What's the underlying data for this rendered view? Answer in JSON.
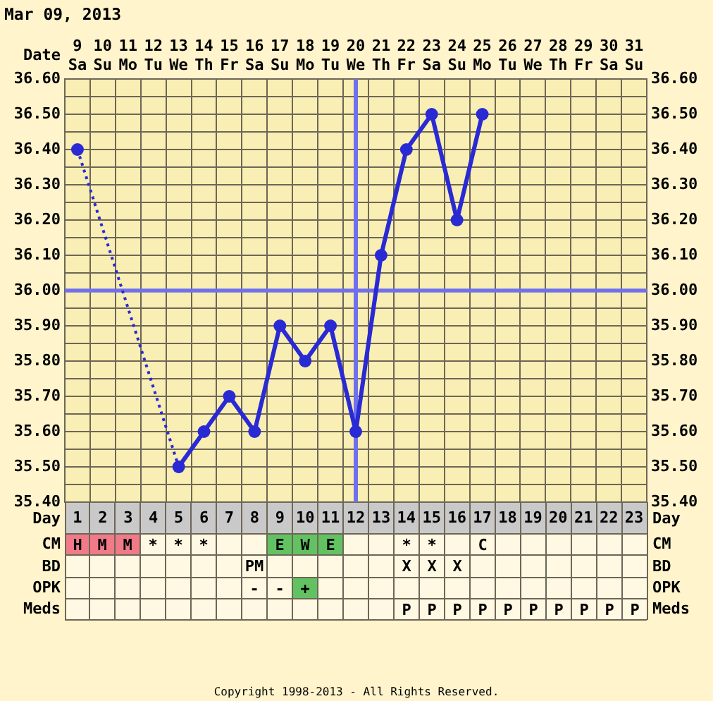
{
  "chart_data": [
    {
      "type": "line",
      "title": "Mar 09, 2013",
      "xlabel": "Date",
      "x2label": "Day",
      "categories": [
        "9\nSa",
        "10\nSu",
        "11\nMo",
        "12\nTu",
        "13\nWe",
        "14\nTh",
        "15\nFr",
        "16\nSa",
        "17\nSu",
        "18\nMo",
        "19\nTu",
        "20\nWe",
        "21\nTh",
        "22\nFr",
        "23\nSa",
        "24\nSu",
        "25\nMo",
        "26\nTu",
        "27\nWe",
        "28\nTh",
        "29\nFr",
        "30\nSa",
        "31\nSu"
      ],
      "values": [
        36.4,
        null,
        null,
        null,
        35.5,
        35.6,
        35.7,
        35.6,
        35.9,
        35.8,
        35.9,
        35.6,
        36.1,
        36.4,
        36.5,
        36.2,
        36.5,
        null,
        null,
        null,
        null,
        null,
        null
      ],
      "color": "#2a2ad4",
      "marker": "circle",
      "line_style": "solid",
      "grid": true,
      "x2lim": [
        0.5,
        23.5
      ],
      "x2ticks": [
        1,
        2,
        3,
        4,
        5,
        6,
        7,
        8,
        9,
        10,
        11,
        12,
        13,
        14,
        15,
        16,
        17,
        18,
        19,
        20,
        21,
        22,
        23
      ],
      "ylim": [
        35.4,
        36.6
      ],
      "yticks": [
        {
          "value": 35.4,
          "label": "35.40"
        },
        {
          "value": 35.45,
          "label": null
        },
        {
          "value": 35.5,
          "label": "35.50"
        },
        {
          "value": 35.55,
          "label": null
        },
        {
          "value": 35.6,
          "label": "35.60"
        },
        {
          "value": 35.65,
          "label": null
        },
        {
          "value": 35.7,
          "label": "35.70"
        },
        {
          "value": 35.75,
          "label": null
        },
        {
          "value": 35.8,
          "label": "35.80"
        },
        {
          "value": 35.85,
          "label": null
        },
        {
          "value": 35.9,
          "label": "35.90"
        },
        {
          "value": 35.95,
          "label": null
        },
        {
          "value": 36,
          "label": "36.00"
        },
        {
          "value": 36.05,
          "label": null
        },
        {
          "value": 36.1,
          "label": "36.10"
        },
        {
          "value": 36.15,
          "label": null
        },
        {
          "value": 36.2,
          "label": "36.20"
        },
        {
          "value": 36.25,
          "label": null
        },
        {
          "value": 36.3,
          "label": "36.30"
        },
        {
          "value": 36.35,
          "label": null
        },
        {
          "value": 36.4,
          "label": "36.40"
        },
        {
          "value": 36.45,
          "label": null
        },
        {
          "value": 36.5,
          "label": "36.50"
        },
        {
          "value": 36.55,
          "label": null
        },
        {
          "value": 36.6,
          "label": "36.60"
        }
      ],
      "y2lim": [
        35.4,
        36.6
      ],
      "y2ticks": [
        {
          "value": 35.4,
          "label": "35.40"
        },
        {
          "value": 35.45,
          "label": null
        },
        {
          "value": 35.5,
          "label": "35.50"
        },
        {
          "value": 35.55,
          "label": null
        },
        {
          "value": 35.6,
          "label": "35.60"
        },
        {
          "value": 35.65,
          "label": null
        },
        {
          "value": 35.7,
          "label": "35.70"
        },
        {
          "value": 35.75,
          "label": null
        },
        {
          "value": 35.8,
          "label": "35.80"
        },
        {
          "value": 35.85,
          "label": null
        },
        {
          "value": 35.9,
          "label": "35.90"
        },
        {
          "value": 35.95,
          "label": null
        },
        {
          "value": 36,
          "label": "36.00"
        },
        {
          "value": 36.05,
          "label": null
        },
        {
          "value": 36.1,
          "label": "36.10"
        },
        {
          "value": 36.15,
          "label": null
        },
        {
          "value": 36.2,
          "label": "36.20"
        },
        {
          "value": 36.25,
          "label": null
        },
        {
          "value": 36.3,
          "label": "36.30"
        },
        {
          "value": 36.35,
          "label": null
        },
        {
          "value": 36.4,
          "label": "36.40"
        },
        {
          "value": 36.45,
          "label": null
        },
        {
          "value": 36.5,
          "label": "36.50"
        },
        {
          "value": 36.55,
          "label": null
        },
        {
          "value": 36.6,
          "label": "36.60"
        }
      ],
      "ref_lines": [
        {
          "axis": "x",
          "value": "20\nWe",
          "color": "#7070ee"
        },
        {
          "axis": "y",
          "value": 36,
          "color": "#7070ee"
        }
      ]
    },
    {
      "type": "other",
      "y_categories": [
        "CM",
        "BD",
        "OPK",
        "Meds"
      ],
      "y2_categories": [
        "CM",
        "BD",
        "OPK",
        "Meds"
      ],
      "cell_labels": [
        [
          "H",
          "M",
          "M",
          "*",
          "*",
          "*",
          null,
          null,
          "E",
          "W",
          "E",
          null,
          null,
          "*",
          "*",
          null,
          "C",
          null,
          null,
          null,
          null,
          null,
          null
        ],
        [
          null,
          null,
          null,
          null,
          null,
          null,
          null,
          "PM",
          null,
          null,
          null,
          null,
          null,
          "X",
          "X",
          "X",
          null,
          null,
          null,
          null,
          null,
          null,
          null
        ],
        [
          null,
          null,
          null,
          null,
          null,
          null,
          null,
          "-",
          "-",
          "+",
          null,
          null,
          null,
          null,
          null,
          null,
          null,
          null,
          null,
          null,
          null,
          null,
          null
        ],
        [
          null,
          null,
          null,
          null,
          null,
          null,
          null,
          null,
          null,
          null,
          null,
          null,
          null,
          "P",
          "P",
          "P",
          "P",
          "P",
          "P",
          "P",
          "P",
          "P",
          "P"
        ]
      ],
      "colors": [
        [
          "#f07a88",
          "#f07a88",
          "#f07a88",
          null,
          null,
          null,
          null,
          null,
          "#62c262",
          "#62c262",
          "#62c262",
          null,
          null,
          null,
          null,
          null,
          null,
          null,
          null,
          null,
          null,
          null,
          null
        ],
        [
          null,
          null,
          null,
          null,
          null,
          null,
          null,
          null,
          null,
          null,
          null,
          null,
          null,
          null,
          null,
          null,
          null,
          null,
          null,
          null,
          null,
          null,
          null
        ],
        [
          null,
          null,
          null,
          null,
          null,
          null,
          null,
          null,
          null,
          "#62c262",
          null,
          null,
          null,
          null,
          null,
          null,
          null,
          null,
          null,
          null,
          null,
          null,
          null
        ],
        [
          null,
          null,
          null,
          null,
          null,
          null,
          null,
          null,
          null,
          null,
          null,
          null,
          null,
          null,
          null,
          null,
          null,
          null,
          null,
          null,
          null,
          null,
          null
        ]
      ],
      "annotations": [
        "Copyright 1998-2013 - All Rights Reserved."
      ]
    }
  ]
}
